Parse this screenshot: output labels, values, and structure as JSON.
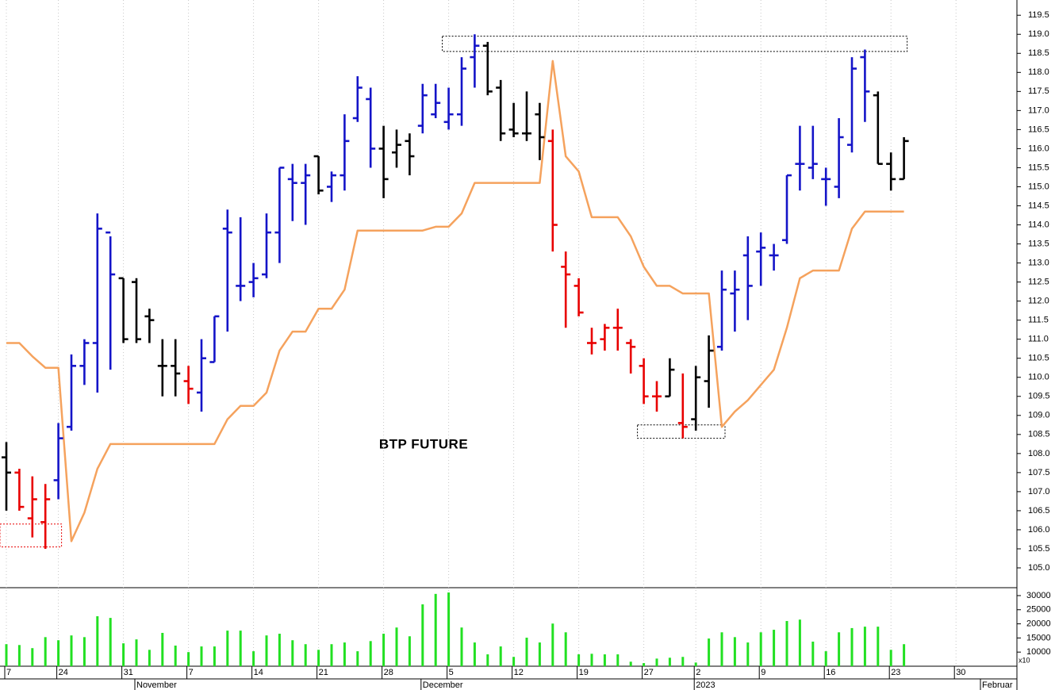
{
  "chart_data": [
    {
      "type": "ohlc",
      "title": "BTP FUTURE",
      "categories": [
        "7",
        null,
        null,
        null,
        "24",
        null,
        null,
        null,
        null,
        "31",
        null,
        null,
        null,
        null,
        "7",
        null,
        null,
        null,
        null,
        "14",
        null,
        null,
        null,
        null,
        "21",
        null,
        null,
        null,
        null,
        "28",
        null,
        null,
        null,
        null,
        "5",
        null,
        null,
        null,
        null,
        "12",
        null,
        null,
        null,
        null,
        "19",
        null,
        null,
        null,
        null,
        "27",
        null,
        null,
        null,
        "2",
        null,
        null,
        null,
        null,
        "9",
        null,
        null,
        null,
        null,
        "16",
        null,
        null,
        null,
        null,
        "23",
        null,
        null,
        null,
        null,
        "30",
        null,
        null,
        null,
        null
      ],
      "months": [
        null,
        null,
        null,
        null,
        null,
        null,
        null,
        null,
        null,
        null,
        "November",
        null,
        null,
        null,
        null,
        null,
        null,
        null,
        null,
        null,
        null,
        null,
        null,
        null,
        null,
        null,
        null,
        null,
        null,
        null,
        null,
        null,
        "December",
        null,
        null,
        null,
        null,
        null,
        null,
        null,
        null,
        null,
        null,
        null,
        null,
        null,
        null,
        null,
        null,
        null,
        null,
        null,
        null,
        "2023",
        null,
        null,
        null,
        null,
        null,
        null,
        null,
        null,
        null,
        null,
        null,
        null,
        null,
        null,
        null,
        null,
        null,
        null,
        null,
        null,
        null,
        "Februar",
        null,
        null
      ],
      "open": [
        107.9,
        107.5,
        106.3,
        106.2,
        107.3,
        108.7,
        110.3,
        110.9,
        113.8,
        112.6,
        112.5,
        111.6,
        110.3,
        110.3,
        109.9,
        109.6,
        110.4,
        113.9,
        112.4,
        112.5,
        112.7,
        113.8,
        115.2,
        115.1,
        115.8,
        115.0,
        115.3,
        116.8,
        117.3,
        116.0,
        115.9,
        116.2,
        116.6,
        116.9,
        116.7,
        116.9,
        118.4,
        118.7,
        117.6,
        116.5,
        116.4,
        116.9,
        116.2,
        112.9,
        112.4,
        110.9,
        111.0,
        111.3,
        110.9,
        110.3,
        109.5,
        109.5,
        108.8,
        108.9,
        109.9,
        110.8,
        112.2,
        113.2,
        113.3,
        113.2,
        113.6,
        115.6,
        115.5,
        115.2,
        115.0,
        116.1,
        118.4,
        117.4,
        115.6,
        115.2,
        null,
        null,
        null,
        null,
        null,
        null,
        null,
        null
      ],
      "high": [
        108.3,
        107.6,
        107.4,
        107.2,
        108.8,
        110.6,
        111.0,
        114.3,
        113.7,
        112.6,
        112.6,
        111.8,
        111.0,
        111.0,
        110.3,
        111.0,
        111.6,
        114.4,
        114.2,
        113.0,
        114.3,
        115.5,
        115.6,
        115.6,
        115.8,
        115.4,
        116.9,
        117.9,
        117.6,
        116.6,
        116.5,
        116.4,
        117.7,
        117.7,
        117.6,
        118.4,
        119.0,
        118.8,
        117.8,
        117.2,
        117.5,
        117.2,
        116.5,
        113.3,
        112.6,
        111.3,
        111.4,
        111.8,
        111.0,
        110.5,
        109.9,
        110.5,
        110.1,
        110.3,
        111.1,
        112.8,
        112.8,
        113.7,
        113.8,
        113.5,
        115.3,
        116.6,
        116.6,
        115.5,
        116.8,
        118.4,
        118.6,
        117.5,
        115.9,
        116.3,
        null,
        null,
        null,
        null,
        null,
        null,
        null,
        null
      ],
      "low": [
        106.5,
        106.5,
        105.8,
        105.5,
        106.8,
        108.6,
        109.8,
        109.6,
        110.2,
        110.9,
        110.9,
        110.9,
        109.5,
        109.5,
        109.3,
        109.1,
        110.4,
        111.2,
        112.0,
        112.1,
        112.6,
        113.0,
        114.1,
        114.0,
        114.8,
        114.6,
        114.9,
        116.7,
        115.5,
        114.7,
        115.5,
        115.3,
        116.4,
        116.8,
        116.5,
        116.6,
        117.6,
        117.4,
        116.2,
        116.3,
        116.2,
        115.7,
        113.3,
        111.3,
        111.6,
        110.6,
        110.7,
        110.7,
        110.1,
        109.3,
        109.1,
        109.5,
        108.4,
        108.6,
        109.2,
        110.7,
        111.2,
        111.5,
        112.4,
        112.8,
        113.5,
        114.9,
        115.2,
        114.5,
        114.7,
        115.9,
        116.7,
        115.6,
        114.9,
        115.2,
        null,
        null,
        null,
        null,
        null,
        null,
        null,
        null
      ],
      "close": [
        107.5,
        106.6,
        106.8,
        106.8,
        108.4,
        110.3,
        110.9,
        113.9,
        112.7,
        111.0,
        111.0,
        111.5,
        110.3,
        110.1,
        109.7,
        110.5,
        111.6,
        113.8,
        112.4,
        112.6,
        113.8,
        115.5,
        115.1,
        115.3,
        114.9,
        115.3,
        116.2,
        117.6,
        116.0,
        115.2,
        116.1,
        115.8,
        117.4,
        117.2,
        116.9,
        118.1,
        118.7,
        117.5,
        116.4,
        116.4,
        116.4,
        116.3,
        114.0,
        112.7,
        111.7,
        110.9,
        111.3,
        111.3,
        110.8,
        109.5,
        109.5,
        110.2,
        108.7,
        110.0,
        110.7,
        112.3,
        112.3,
        112.4,
        113.4,
        113.2,
        115.3,
        115.6,
        115.6,
        115.2,
        116.3,
        118.1,
        117.5,
        115.6,
        115.2,
        116.2,
        null,
        null,
        null,
        null,
        null,
        null,
        null,
        null
      ],
      "bar_colors": [
        "#000000",
        "#e80000",
        "#e80000",
        "#e80000",
        "#1414c8",
        "#1414c8",
        "#1414c8",
        "#1414c8",
        "#1414c8",
        "#000000",
        "#000000",
        "#000000",
        "#000000",
        "#000000",
        "#e80000",
        "#1414c8",
        "#1414c8",
        "#1414c8",
        "#1414c8",
        "#1414c8",
        "#1414c8",
        "#1414c8",
        "#1414c8",
        "#1414c8",
        "#000000",
        "#1414c8",
        "#1414c8",
        "#1414c8",
        "#1414c8",
        "#000000",
        "#000000",
        "#000000",
        "#1414c8",
        "#1414c8",
        "#1414c8",
        "#1414c8",
        "#1414c8",
        "#000000",
        "#000000",
        "#000000",
        "#000000",
        "#000000",
        "#e80000",
        "#e80000",
        "#e80000",
        "#e80000",
        "#e80000",
        "#e80000",
        "#e80000",
        "#e80000",
        "#e80000",
        "#000000",
        "#e80000",
        "#000000",
        "#000000",
        "#1414c8",
        "#1414c8",
        "#1414c8",
        "#1414c8",
        "#1414c8",
        "#1414c8",
        "#1414c8",
        "#1414c8",
        "#1414c8",
        "#1414c8",
        "#1414c8",
        "#1414c8",
        "#000000",
        "#000000",
        "#000000",
        null,
        null,
        null,
        null,
        null,
        null,
        null,
        null
      ],
      "overlay": {
        "color": "#f5a25d",
        "values": [
          110.9,
          110.9,
          110.55,
          110.25,
          110.25,
          105.7,
          106.45,
          107.6,
          108.25,
          108.25,
          108.25,
          108.25,
          108.25,
          108.25,
          108.25,
          108.25,
          108.25,
          108.9,
          109.25,
          109.25,
          109.6,
          110.7,
          111.2,
          111.2,
          111.8,
          111.8,
          112.3,
          113.85,
          113.85,
          113.85,
          113.85,
          113.85,
          113.85,
          113.95,
          113.95,
          114.3,
          115.1,
          115.1,
          115.1,
          115.1,
          115.1,
          115.1,
          118.3,
          115.8,
          115.4,
          114.2,
          114.2,
          114.2,
          113.7,
          112.9,
          112.4,
          112.4,
          112.2,
          112.2,
          112.2,
          108.7,
          109.1,
          109.4,
          109.8,
          110.2,
          111.3,
          112.6,
          112.8,
          112.8,
          112.8,
          113.9,
          114.35,
          114.35,
          114.35,
          114.35,
          null,
          null,
          null,
          null,
          null,
          null,
          null,
          null
        ]
      },
      "boxes": [
        {
          "start": 34,
          "end": 69,
          "low": 118.55,
          "high": 118.95,
          "color": "#000000"
        },
        {
          "start": 49,
          "end": 55,
          "low": 108.4,
          "high": 108.75,
          "color": "#000000"
        },
        {
          "start": 0,
          "end": 4,
          "low": 105.55,
          "high": 106.15,
          "color": "#e80000"
        }
      ],
      "ylim": [
        104.48,
        119.9
      ],
      "yticks": [
        {
          "value": 105.0,
          "label": "105.0"
        },
        {
          "value": 105.5,
          "label": "105.5"
        },
        {
          "value": 106.0,
          "label": "106.0"
        },
        {
          "value": 106.5,
          "label": "106.5"
        },
        {
          "value": 107.0,
          "label": "107.0"
        },
        {
          "value": 107.5,
          "label": "107.5"
        },
        {
          "value": 108.0,
          "label": "108.0"
        },
        {
          "value": 108.5,
          "label": "108.5"
        },
        {
          "value": 109.0,
          "label": "109.0"
        },
        {
          "value": 109.5,
          "label": "109.5"
        },
        {
          "value": 110.0,
          "label": "110.0"
        },
        {
          "value": 110.5,
          "label": "110.5"
        },
        {
          "value": 111.0,
          "label": "111.0"
        },
        {
          "value": 111.5,
          "label": "111.5"
        },
        {
          "value": 112.0,
          "label": "112.0"
        },
        {
          "value": 112.5,
          "label": "112.5"
        },
        {
          "value": 113.0,
          "label": "113.0"
        },
        {
          "value": 113.5,
          "label": "113.5"
        },
        {
          "value": 114.0,
          "label": "114.0"
        },
        {
          "value": 114.5,
          "label": "114.5"
        },
        {
          "value": 115.0,
          "label": "115.0"
        },
        {
          "value": 115.5,
          "label": "115.5"
        },
        {
          "value": 116.0,
          "label": "116.0"
        },
        {
          "value": 116.5,
          "label": "116.5"
        },
        {
          "value": 117.0,
          "label": "117.0"
        },
        {
          "value": 117.5,
          "label": "117.5"
        },
        {
          "value": 118.0,
          "label": "118.0"
        },
        {
          "value": 118.5,
          "label": "118.5"
        },
        {
          "value": 119.0,
          "label": "119.0"
        },
        {
          "value": 119.5,
          "label": "119.5"
        }
      ],
      "grid": true
    },
    {
      "type": "bar",
      "color": "#22e022",
      "axis_label": "x10",
      "values": [
        12800,
        12500,
        11400,
        15300,
        14200,
        15900,
        15300,
        22700,
        22100,
        13100,
        14500,
        10800,
        16800,
        12300,
        10000,
        12000,
        12000,
        17600,
        17600,
        10300,
        15900,
        16500,
        14200,
        12800,
        10800,
        12800,
        13400,
        10300,
        13900,
        16500,
        18700,
        15600,
        26900,
        30600,
        31100,
        18700,
        13400,
        9200,
        12000,
        8300,
        15100,
        13400,
        20100,
        17000,
        9200,
        9400,
        9200,
        9200,
        6600,
        6100,
        7700,
        8000,
        8300,
        6300,
        14800,
        17000,
        15300,
        13400,
        17000,
        17900,
        21000,
        21500,
        13700,
        10300,
        17000,
        18500,
        19000,
        19000,
        10800,
        12800,
        null,
        null,
        null,
        null,
        null,
        null,
        null,
        null
      ],
      "ylim": [
        5000,
        32800
      ],
      "yticks": [
        10000,
        15000,
        20000,
        25000,
        30000
      ]
    }
  ]
}
